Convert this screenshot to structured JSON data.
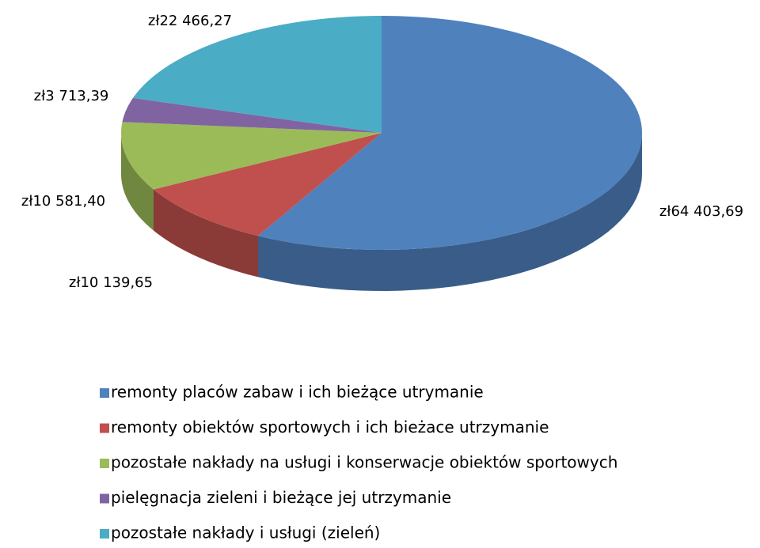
{
  "chart_data": {
    "type": "pie",
    "categories": [
      "remonty placów zabaw i ich bieżące utrymanie",
      "remonty obiektów sportowych i ich bieżace utrzymanie",
      "pozostałe nakłady na usługi i konserwacje obiektów sportowych",
      "pielęgnacja zieleni i bieżące jej utrzymanie",
      "pozostałe nakłady i usługi (zieleń)"
    ],
    "values": [
      64403.69,
      10139.65,
      10581.4,
      3713.39,
      22466.27
    ],
    "value_labels": [
      "zł64 403,69",
      "zł10 139,65",
      "zł10 581,40",
      "zł3 713,39",
      "zł22 466,27"
    ],
    "colors": [
      "#4f81bd",
      "#c0504d",
      "#9bbb59",
      "#8064a2",
      "#4bacc6"
    ],
    "legend": "bottom"
  }
}
